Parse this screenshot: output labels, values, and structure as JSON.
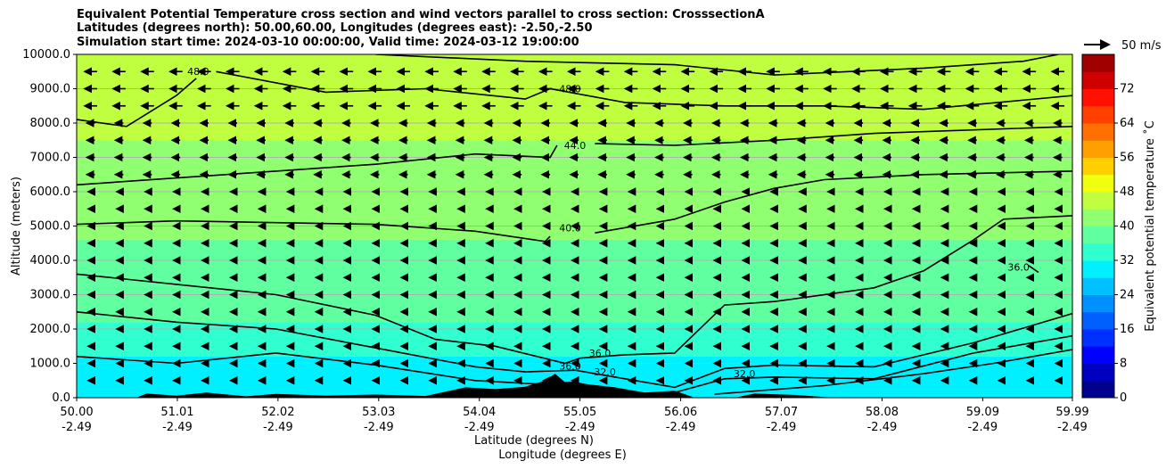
{
  "titles": [
    "Equivalent Potential Temperature cross section and wind vectors parallel to cross section: CrosssectionA",
    "Latitudes (degrees north): 50.00,60.00, Longitudes (degrees east): -2.50,-2.50",
    "Simulation start time: 2024-03-10 00:00:00, Valid time: 2024-03-12 19:00:00"
  ],
  "chart_data": {
    "type": "contour-cross-section",
    "ylabel": "Altitude (meters)",
    "xlabel_lines": [
      "Latitude (degrees N)",
      "Longitude (degrees E)"
    ],
    "ylim": [
      0,
      10000
    ],
    "yticks": [
      "0.0",
      "1000.0",
      "2000.0",
      "3000.0",
      "4000.0",
      "5000.0",
      "6000.0",
      "7000.0",
      "8000.0",
      "9000.0",
      "10000.0"
    ],
    "xlim": [
      50.0,
      59.99
    ],
    "xticks": [
      {
        "lat": "50.00",
        "lon": "-2.49",
        "x": 50.0
      },
      {
        "lat": "51.01",
        "lon": "-2.49",
        "x": 51.01
      },
      {
        "lat": "52.02",
        "lon": "-2.49",
        "x": 52.02
      },
      {
        "lat": "53.03",
        "lon": "-2.49",
        "x": 53.03
      },
      {
        "lat": "54.04",
        "lon": "-2.49",
        "x": 54.04
      },
      {
        "lat": "55.05",
        "lon": "-2.49",
        "x": 55.05
      },
      {
        "lat": "56.06",
        "lon": "-2.49",
        "x": 56.06
      },
      {
        "lat": "57.07",
        "lon": "-2.49",
        "x": 57.07
      },
      {
        "lat": "58.08",
        "lon": "-2.49",
        "x": 58.08
      },
      {
        "lat": "59.09",
        "lon": "-2.49",
        "x": 59.09
      },
      {
        "lat": "59.99",
        "lon": "-2.49",
        "x": 59.99
      }
    ],
    "grid": true,
    "colorbar": {
      "label": "Equivalent potential temperature ˚C",
      "min": 0,
      "max": 80,
      "ticks": [
        "0",
        "8",
        "16",
        "24",
        "32",
        "40",
        "48",
        "56",
        "64",
        "72"
      ],
      "colors": [
        "#00008f",
        "#0000c0",
        "#0000ff",
        "#0030ff",
        "#0060ff",
        "#0090ff",
        "#00c0ff",
        "#00f0ff",
        "#30ffd0",
        "#60ffa0",
        "#90ff70",
        "#c0ff40",
        "#f0ff10",
        "#ffd000",
        "#ffa000",
        "#ff7000",
        "#ff4000",
        "#ff1000",
        "#d00000",
        "#a00000"
      ]
    },
    "field_bands": [
      {
        "theta": 46.5,
        "y_low": 8700,
        "y_high": 10000
      },
      {
        "theta": 44.5,
        "y_low": 7500,
        "y_high": 8700
      },
      {
        "theta": 42.5,
        "y_low": 6000,
        "y_high": 7500
      },
      {
        "theta": 40.5,
        "y_low": 4600,
        "y_high": 6000
      },
      {
        "theta": 38.5,
        "y_low": 3300,
        "y_high": 4600
      },
      {
        "theta": 36.5,
        "y_low": 2200,
        "y_high": 3300
      },
      {
        "theta": 33.5,
        "y_low": 1200,
        "y_high": 2200
      },
      {
        "theta": 31.5,
        "y_low": 0,
        "y_high": 1200
      }
    ],
    "contours": [
      {
        "level": "48.0",
        "points": [
          [
            50.0,
            8100
          ],
          [
            50.5,
            7900
          ],
          [
            51.0,
            8800
          ],
          [
            51.2,
            9300
          ]
        ],
        "label_at": [
          51.22,
          9400
        ]
      },
      {
        "level": "48.0",
        "points": [
          [
            51.4,
            9500
          ],
          [
            52.5,
            8900
          ],
          [
            53.5,
            9000
          ],
          [
            54.5,
            8700
          ],
          [
            54.75,
            9000
          ],
          [
            55.5,
            8600
          ],
          [
            56.5,
            8500
          ],
          [
            57.5,
            8500
          ],
          [
            58.5,
            8400
          ],
          [
            59.99,
            8800
          ]
        ],
        "label_at": [
          54.95,
          8900
        ]
      },
      {
        "level": "48.0",
        "points": [
          [
            53.0,
            10000
          ],
          [
            54.5,
            9800
          ],
          [
            56.0,
            9700
          ],
          [
            57.0,
            9400
          ],
          [
            58.5,
            9600
          ],
          [
            59.5,
            9800
          ],
          [
            59.85,
            10000
          ]
        ],
        "label_at": null
      },
      {
        "level": "44.0",
        "points": [
          [
            50.0,
            6200
          ],
          [
            51.0,
            6400
          ],
          [
            52.0,
            6600
          ],
          [
            53.0,
            6800
          ],
          [
            54.0,
            7100
          ],
          [
            54.75,
            7000
          ],
          [
            54.82,
            7350
          ]
        ],
        "label_at": [
          55.0,
          7250
        ]
      },
      {
        "level": "44.0",
        "points": [
          [
            55.2,
            7400
          ],
          [
            56.0,
            7350
          ],
          [
            57.0,
            7500
          ],
          [
            58.0,
            7700
          ],
          [
            59.0,
            7800
          ],
          [
            59.99,
            7900
          ]
        ],
        "label_at": null
      },
      {
        "level": "40.0",
        "points": [
          [
            50.0,
            5050
          ],
          [
            51.0,
            5150
          ],
          [
            52.0,
            5100
          ],
          [
            53.0,
            5050
          ],
          [
            54.0,
            4850
          ],
          [
            54.7,
            4550
          ],
          [
            54.75,
            4700
          ]
        ],
        "label_at": [
          54.95,
          4850
        ]
      },
      {
        "level": "40.0",
        "points": [
          [
            55.2,
            4800
          ],
          [
            56.0,
            5200
          ],
          [
            56.5,
            5700
          ],
          [
            57.0,
            6100
          ],
          [
            57.5,
            6350
          ],
          [
            58.5,
            6500
          ],
          [
            59.99,
            6600
          ]
        ],
        "label_at": null
      },
      {
        "level": "36.0",
        "points": [
          [
            50.0,
            3600
          ],
          [
            51.0,
            3300
          ],
          [
            52.0,
            3000
          ],
          [
            53.0,
            2400
          ],
          [
            53.6,
            1700
          ],
          [
            54.2,
            1500
          ],
          [
            54.9,
            1000
          ],
          [
            55.05,
            1150
          ],
          [
            55.5,
            1250
          ],
          [
            56.0,
            1300
          ],
          [
            56.5,
            2700
          ],
          [
            57.0,
            2800
          ],
          [
            58.0,
            3200
          ],
          [
            58.5,
            3700
          ],
          [
            59.0,
            4600
          ],
          [
            59.3,
            5200
          ],
          [
            59.99,
            5300
          ]
        ],
        "label_at": [
          55.25,
          1200
        ]
      },
      {
        "level": "36.0",
        "points": [
          [
            50.0,
            2500
          ],
          [
            51.0,
            2200
          ],
          [
            52.0,
            2000
          ],
          [
            53.0,
            1450
          ],
          [
            54.0,
            900
          ],
          [
            54.5,
            750
          ],
          [
            55.0,
            800
          ],
          [
            55.5,
            550
          ],
          [
            56.0,
            300
          ],
          [
            56.5,
            850
          ],
          [
            57.0,
            950
          ],
          [
            58.0,
            900
          ],
          [
            59.0,
            1600
          ],
          [
            59.99,
            2450
          ]
        ],
        "label_at": [
          54.95,
          820
        ]
      },
      {
        "level": "32.0",
        "points": [
          [
            50.0,
            1200
          ],
          [
            51.0,
            1000
          ],
          [
            52.0,
            1300
          ],
          [
            53.0,
            950
          ],
          [
            54.0,
            500
          ],
          [
            54.6,
            400
          ],
          [
            55.0,
            450
          ],
          [
            55.5,
            100
          ],
          [
            56.0,
            150
          ],
          [
            56.5,
            550
          ],
          [
            57.0,
            600
          ],
          [
            58.0,
            550
          ],
          [
            59.0,
            1300
          ],
          [
            59.99,
            1800
          ]
        ],
        "label_at": [
          55.3,
          650
        ]
      },
      {
        "level": "32.0",
        "points": [
          [
            56.4,
            100
          ],
          [
            57.5,
            350
          ],
          [
            58.5,
            700
          ],
          [
            59.2,
            1000
          ],
          [
            59.99,
            1400
          ]
        ],
        "label_at": [
          56.7,
          600
        ]
      },
      {
        "level": "36.0",
        "points": [
          [
            59.55,
            3850
          ],
          [
            59.65,
            3650
          ]
        ],
        "label_at": [
          59.45,
          3700
        ]
      }
    ],
    "terrain": [
      [
        50.0,
        0
      ],
      [
        50.6,
        0
      ],
      [
        50.7,
        120
      ],
      [
        51.0,
        60
      ],
      [
        51.3,
        150
      ],
      [
        51.7,
        40
      ],
      [
        52.0,
        110
      ],
      [
        52.5,
        60
      ],
      [
        53.0,
        90
      ],
      [
        53.5,
        50
      ],
      [
        53.9,
        300
      ],
      [
        54.2,
        250
      ],
      [
        54.5,
        320
      ],
      [
        54.7,
        500
      ],
      [
        54.8,
        700
      ],
      [
        54.9,
        450
      ],
      [
        55.1,
        400
      ],
      [
        55.4,
        300
      ],
      [
        55.7,
        150
      ],
      [
        56.0,
        200
      ],
      [
        56.2,
        0
      ],
      [
        56.6,
        0
      ],
      [
        56.8,
        120
      ],
      [
        57.2,
        80
      ],
      [
        57.6,
        0
      ],
      [
        59.99,
        0
      ]
    ],
    "wind_vectors": {
      "direction": "toward decreasing latitude",
      "scale_label": "50 m/s",
      "scale_speed": 50,
      "rows": [
        500,
        1000,
        1500,
        2000,
        2500,
        3000,
        3500,
        4000,
        4500,
        5000,
        5500,
        6000,
        6500,
        7000,
        7500,
        8000,
        8500,
        9000,
        9500
      ],
      "columns": 35
    }
  }
}
